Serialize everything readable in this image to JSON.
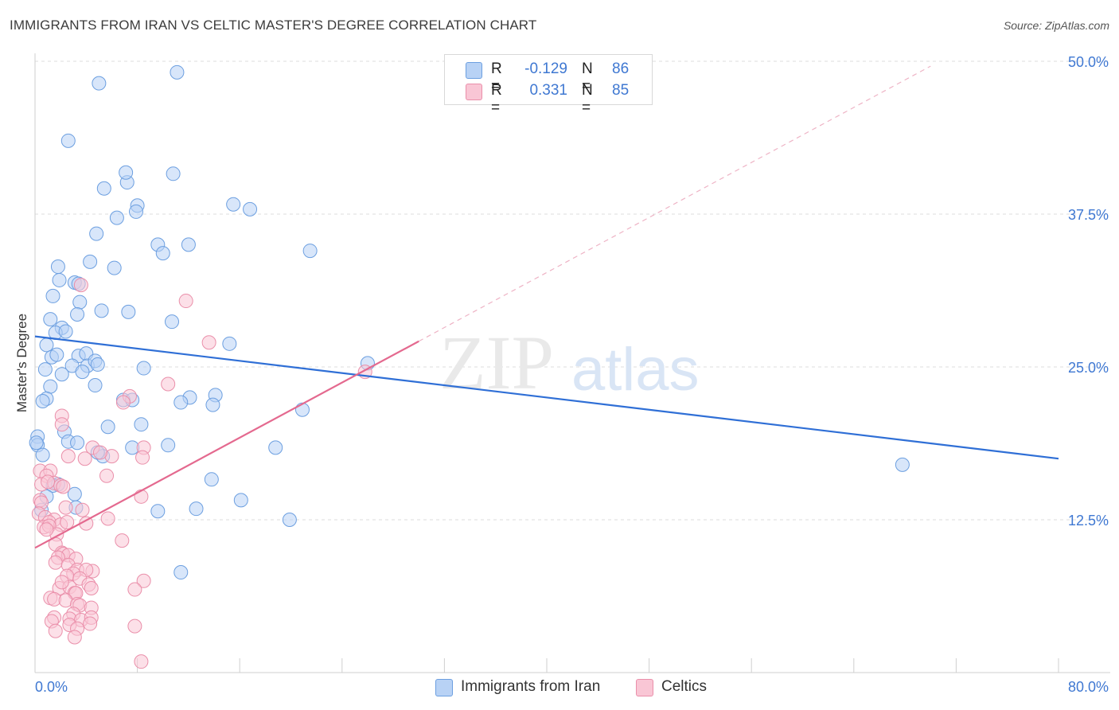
{
  "title": "IMMIGRANTS FROM IRAN VS CELTIC MASTER'S DEGREE CORRELATION CHART",
  "source": "Source: ZipAtlas.com",
  "watermark": {
    "zip": "ZIP",
    "atlas": "atlas"
  },
  "legend": {
    "series": [
      {
        "name": "Immigrants from Iran",
        "r_label": "R =",
        "r_value": "-0.129",
        "n_label": "N =",
        "n_value": "86",
        "fill": "#b8d2f5",
        "stroke": "#6c9fe0",
        "line": "#2f6fd6"
      },
      {
        "name": "Celtics",
        "r_label": "R =",
        "r_value": "0.331",
        "n_label": "N =",
        "n_value": "85",
        "fill": "#f9c6d5",
        "stroke": "#ea8faa",
        "line": "#e4698f"
      }
    ]
  },
  "chart_data": {
    "type": "scatter",
    "title": "IMMIGRANTS FROM IRAN VS CELTIC MASTER'S DEGREE CORRELATION CHART",
    "xlabel": "",
    "ylabel": "Master's Degree",
    "xlim": [
      0,
      80
    ],
    "ylim": [
      0,
      50
    ],
    "x_tick_labels": [
      "0.0%",
      "80.0%"
    ],
    "y_ticks": [
      12.5,
      25.0,
      37.5,
      50.0
    ],
    "y_tick_labels": [
      "12.5%",
      "25.0%",
      "37.5%",
      "50.0%"
    ],
    "grid": true,
    "series": [
      {
        "name": "Immigrants from Iran",
        "trend": {
          "x": [
            0,
            80
          ],
          "y": [
            27.5,
            17.5
          ]
        },
        "points": [
          [
            11.1,
            49.1
          ],
          [
            5.0,
            48.2
          ],
          [
            2.6,
            43.5
          ],
          [
            5.4,
            39.6
          ],
          [
            7.2,
            40.1
          ],
          [
            7.1,
            40.9
          ],
          [
            10.8,
            40.8
          ],
          [
            6.4,
            37.2
          ],
          [
            8.0,
            38.2
          ],
          [
            7.9,
            37.7
          ],
          [
            15.5,
            38.3
          ],
          [
            16.8,
            37.9
          ],
          [
            4.8,
            35.9
          ],
          [
            9.6,
            35.0
          ],
          [
            12.0,
            35.0
          ],
          [
            10.0,
            34.3
          ],
          [
            21.5,
            34.5
          ],
          [
            4.3,
            33.6
          ],
          [
            1.8,
            33.2
          ],
          [
            1.9,
            32.1
          ],
          [
            3.1,
            31.9
          ],
          [
            3.4,
            31.8
          ],
          [
            6.2,
            33.1
          ],
          [
            1.4,
            30.8
          ],
          [
            3.5,
            30.3
          ],
          [
            3.3,
            29.3
          ],
          [
            5.2,
            29.6
          ],
          [
            7.3,
            29.5
          ],
          [
            1.2,
            28.9
          ],
          [
            2.1,
            28.2
          ],
          [
            1.6,
            27.8
          ],
          [
            2.4,
            27.9
          ],
          [
            10.7,
            28.7
          ],
          [
            15.2,
            26.9
          ],
          [
            0.9,
            26.8
          ],
          [
            1.3,
            25.8
          ],
          [
            1.7,
            26.0
          ],
          [
            3.4,
            25.9
          ],
          [
            4.0,
            26.1
          ],
          [
            0.8,
            24.8
          ],
          [
            2.9,
            25.1
          ],
          [
            4.1,
            25.1
          ],
          [
            4.7,
            25.5
          ],
          [
            4.9,
            25.2
          ],
          [
            8.5,
            24.9
          ],
          [
            2.1,
            24.4
          ],
          [
            3.7,
            24.6
          ],
          [
            4.7,
            23.5
          ],
          [
            1.2,
            23.4
          ],
          [
            0.9,
            22.4
          ],
          [
            0.6,
            22.2
          ],
          [
            6.9,
            22.3
          ],
          [
            7.6,
            22.3
          ],
          [
            12.1,
            22.5
          ],
          [
            11.4,
            22.1
          ],
          [
            14.1,
            22.7
          ],
          [
            13.9,
            21.9
          ],
          [
            20.9,
            21.5
          ],
          [
            8.3,
            20.3
          ],
          [
            5.7,
            20.1
          ],
          [
            2.3,
            19.7
          ],
          [
            0.2,
            19.3
          ],
          [
            2.6,
            18.9
          ],
          [
            3.3,
            18.8
          ],
          [
            0.2,
            18.6
          ],
          [
            10.4,
            18.6
          ],
          [
            7.6,
            18.4
          ],
          [
            5.3,
            17.7
          ],
          [
            18.8,
            18.4
          ],
          [
            4.9,
            18.0
          ],
          [
            0.6,
            17.8
          ],
          [
            1.8,
            15.4
          ],
          [
            1.4,
            15.3
          ],
          [
            13.8,
            15.8
          ],
          [
            3.1,
            14.6
          ],
          [
            0.9,
            14.4
          ],
          [
            16.1,
            14.1
          ],
          [
            3.2,
            13.5
          ],
          [
            0.5,
            13.3
          ],
          [
            9.6,
            13.2
          ],
          [
            12.6,
            13.4
          ],
          [
            19.9,
            12.5
          ],
          [
            11.4,
            8.2
          ],
          [
            26.0,
            25.3
          ],
          [
            67.8,
            17.0
          ],
          [
            0.1,
            18.8
          ]
        ]
      },
      {
        "name": "Celtics",
        "trend": {
          "x": [
            0,
            30
          ],
          "y": [
            10.2,
            27.1
          ]
        },
        "trend_dashed": {
          "x": [
            30,
            70
          ],
          "y": [
            27.1,
            49.6
          ]
        },
        "points": [
          [
            11.8,
            30.4
          ],
          [
            13.6,
            27.0
          ],
          [
            3.6,
            31.7
          ],
          [
            10.4,
            23.6
          ],
          [
            7.4,
            22.6
          ],
          [
            6.9,
            22.1
          ],
          [
            2.1,
            21.0
          ],
          [
            2.1,
            20.3
          ],
          [
            8.5,
            18.4
          ],
          [
            4.5,
            18.4
          ],
          [
            2.6,
            17.7
          ],
          [
            3.9,
            17.5
          ],
          [
            6.0,
            17.7
          ],
          [
            8.4,
            17.6
          ],
          [
            0.4,
            16.5
          ],
          [
            1.2,
            16.5
          ],
          [
            0.9,
            16.1
          ],
          [
            5.6,
            16.1
          ],
          [
            0.5,
            15.4
          ],
          [
            1.5,
            15.5
          ],
          [
            2.0,
            15.3
          ],
          [
            2.2,
            15.2
          ],
          [
            1.0,
            15.6
          ],
          [
            8.3,
            14.4
          ],
          [
            0.4,
            14.1
          ],
          [
            0.5,
            13.9
          ],
          [
            2.4,
            13.5
          ],
          [
            3.7,
            13.3
          ],
          [
            0.3,
            13.0
          ],
          [
            0.8,
            12.7
          ],
          [
            1.5,
            12.5
          ],
          [
            1.1,
            12.3
          ],
          [
            2.0,
            12.1
          ],
          [
            2.5,
            12.3
          ],
          [
            4.0,
            12.2
          ],
          [
            5.7,
            12.6
          ],
          [
            0.7,
            11.9
          ],
          [
            1.1,
            12.0
          ],
          [
            1.7,
            11.3
          ],
          [
            1.6,
            10.5
          ],
          [
            6.8,
            10.8
          ],
          [
            2.1,
            9.8
          ],
          [
            2.2,
            9.7
          ],
          [
            2.6,
            9.6
          ],
          [
            1.8,
            9.4
          ],
          [
            3.2,
            9.3
          ],
          [
            1.6,
            9.0
          ],
          [
            2.6,
            8.8
          ],
          [
            3.3,
            8.4
          ],
          [
            3.0,
            8.1
          ],
          [
            2.5,
            7.9
          ],
          [
            4.5,
            8.3
          ],
          [
            4.0,
            8.4
          ],
          [
            3.5,
            7.7
          ],
          [
            8.5,
            7.5
          ],
          [
            4.2,
            7.2
          ],
          [
            1.9,
            6.9
          ],
          [
            2.7,
            7.0
          ],
          [
            4.4,
            6.9
          ],
          [
            7.8,
            6.8
          ],
          [
            3.1,
            6.5
          ],
          [
            3.2,
            6.5
          ],
          [
            1.2,
            6.1
          ],
          [
            1.5,
            6.0
          ],
          [
            2.4,
            5.9
          ],
          [
            3.3,
            5.6
          ],
          [
            3.5,
            5.5
          ],
          [
            4.4,
            5.3
          ],
          [
            3.0,
            4.8
          ],
          [
            2.7,
            4.4
          ],
          [
            1.5,
            4.5
          ],
          [
            3.6,
            4.3
          ],
          [
            4.4,
            4.5
          ],
          [
            1.3,
            4.2
          ],
          [
            2.7,
            3.9
          ],
          [
            7.8,
            3.8
          ],
          [
            3.3,
            3.6
          ],
          [
            1.6,
            3.4
          ],
          [
            3.1,
            2.9
          ],
          [
            8.3,
            0.9
          ],
          [
            25.8,
            24.6
          ],
          [
            4.3,
            4.0
          ],
          [
            2.1,
            7.4
          ],
          [
            0.9,
            11.7
          ],
          [
            5.1,
            18.0
          ]
        ]
      }
    ]
  }
}
